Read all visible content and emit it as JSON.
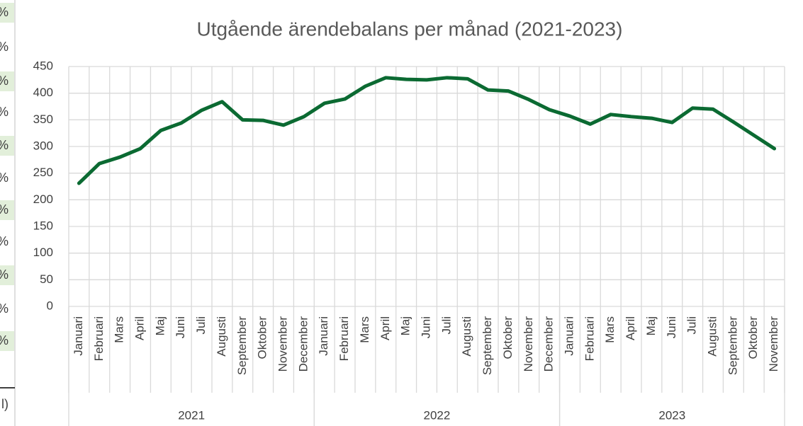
{
  "sheet_fragments": [
    "%",
    "%",
    "%",
    "%",
    "%",
    "%",
    "%",
    "%",
    "%",
    "%",
    "%"
  ],
  "sheet_footer": "l)",
  "chart_data": {
    "type": "line",
    "title": "Utgående ärendebalans per månad (2021-2023)",
    "category_groups": [
      {
        "label": "2021",
        "categories": [
          "Januari",
          "Februari",
          "Mars",
          "April",
          "Maj",
          "Juni",
          "Juli",
          "Augusti",
          "September",
          "Oktober",
          "November",
          "December"
        ]
      },
      {
        "label": "2022",
        "categories": [
          "Januari",
          "Februari",
          "Mars",
          "April",
          "Maj",
          "Juni",
          "Juli",
          "Augusti",
          "September",
          "Oktober",
          "November",
          "December"
        ]
      },
      {
        "label": "2023",
        "categories": [
          "Januari",
          "Februari",
          "Mars",
          "April",
          "Maj",
          "Juni",
          "Juli",
          "Augusti",
          "September",
          "Oktober",
          "November"
        ]
      }
    ],
    "values": [
      231,
      268,
      280,
      296,
      330,
      344,
      368,
      384,
      350,
      349,
      340,
      356,
      381,
      389,
      413,
      429,
      426,
      425,
      429,
      427,
      406,
      404,
      388,
      369,
      357,
      342,
      360,
      356,
      353,
      345,
      372,
      370,
      346,
      321,
      296
    ],
    "color": "#0b6a32",
    "ylim": [
      0,
      450
    ],
    "yticks": [
      0,
      50,
      100,
      150,
      200,
      250,
      300,
      350,
      400,
      450
    ],
    "grid": true
  }
}
